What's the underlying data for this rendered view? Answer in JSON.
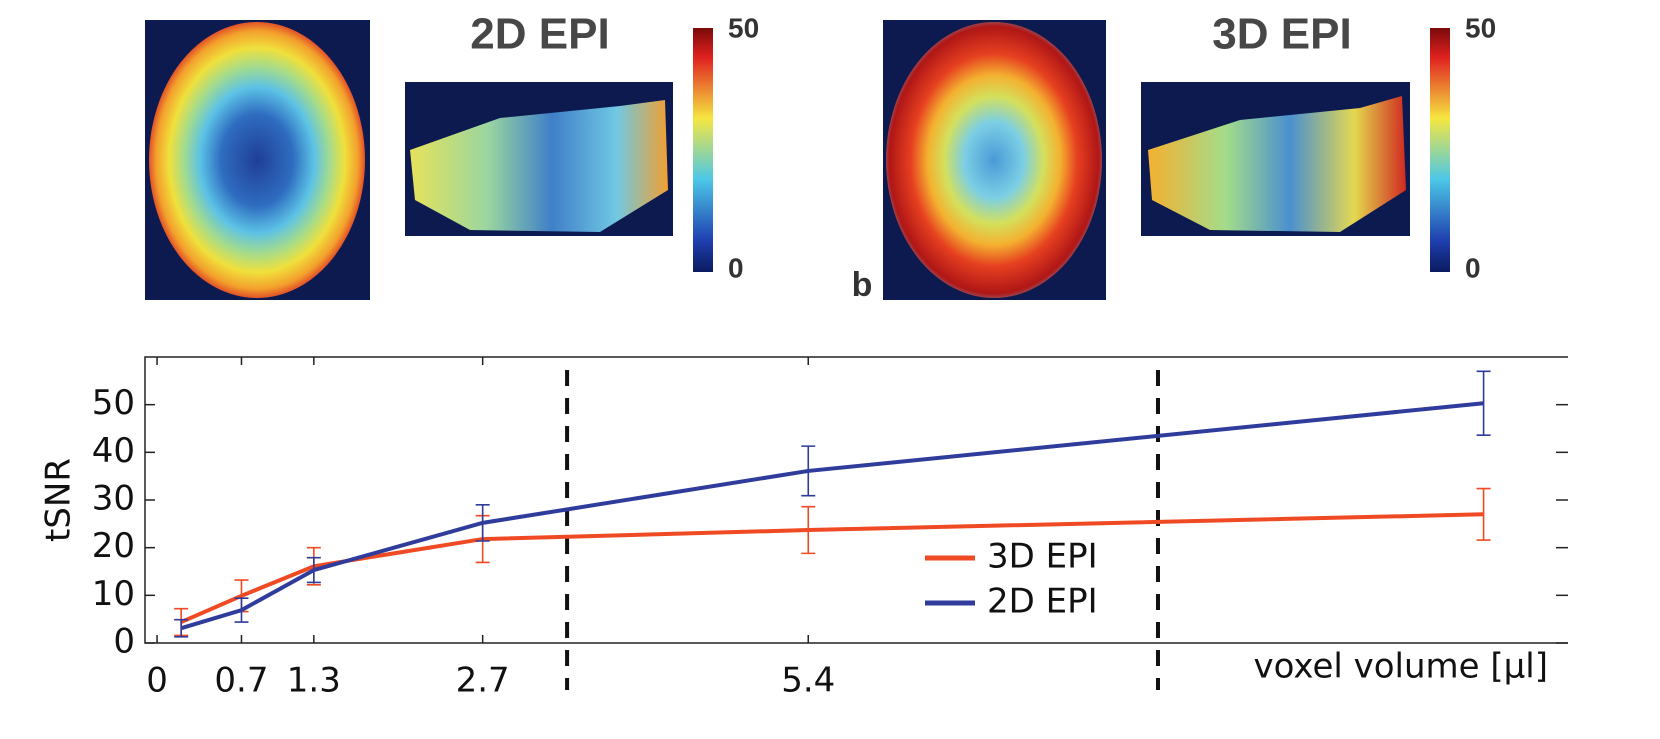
{
  "figures": [
    {
      "title": "2D EPI",
      "colorbar_ticks": [
        50,
        0
      ]
    },
    {
      "title": "3D EPI",
      "colorbar_ticks": [
        50,
        0
      ]
    }
  ],
  "panel_label": "b",
  "chart_data": {
    "type": "line",
    "ylabel": "tSNR",
    "xlabel": "voxel volume [µl]",
    "x": [
      0.2,
      0.7,
      1.3,
      2.7,
      5.4,
      11
    ],
    "series": [
      {
        "name": "3D EPI",
        "color": "#f04a24",
        "values": [
          4.4,
          9.9,
          16.1,
          21.8,
          23.7,
          27.0
        ],
        "errors": [
          2.8,
          3.3,
          3.9,
          4.9,
          4.9,
          5.4
        ]
      },
      {
        "name": "2D EPI",
        "color": "#2f3c9c",
        "values": [
          3.1,
          6.9,
          15.3,
          25.2,
          36.1,
          50.3
        ],
        "errors": [
          1.8,
          2.5,
          2.6,
          3.8,
          5.2,
          6.7
        ]
      }
    ],
    "reference_lines": [
      3.4,
      8.3
    ],
    "xlim": [
      -0.1,
      11.7
    ],
    "xticks": [
      0,
      0.7,
      1.3,
      2.7,
      5.4
    ],
    "ylim": [
      0,
      60
    ],
    "yticks": [
      0,
      10,
      20,
      30,
      40,
      50
    ],
    "legend": "lower center"
  }
}
